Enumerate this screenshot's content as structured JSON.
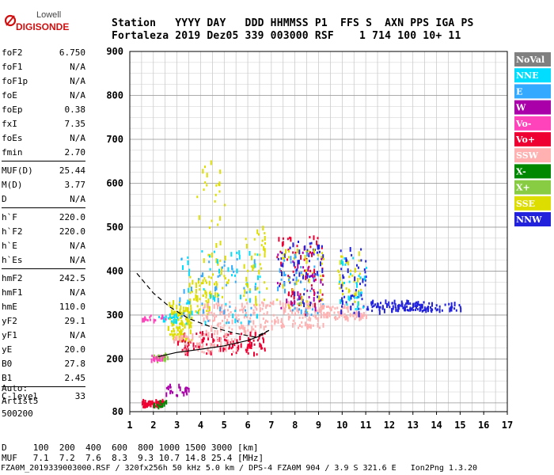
{
  "logo": {
    "line1": "Lowell",
    "line2": "DIGISONDE"
  },
  "header": {
    "line1": "Station   YYYY DAY   DDD HHMMSS P1  FFS S  AXN PPS IGA PS",
    "line2": "Fortaleza 2019 Dez05 339 003000 RSF    1 714 100 10+ 11"
  },
  "params": [
    {
      "k": "foF2",
      "v": "6.750"
    },
    {
      "k": "foF1",
      "v": "N/A"
    },
    {
      "k": "foF1p",
      "v": "N/A"
    },
    {
      "k": "foE",
      "v": "N/A"
    },
    {
      "k": "foEp",
      "v": "0.38"
    },
    {
      "k": "fxI",
      "v": "7.35"
    },
    {
      "k": "foEs",
      "v": "N/A"
    },
    {
      "k": "fmin",
      "v": "2.70"
    },
    {
      "k": "MUF(D)",
      "v": "25.44"
    },
    {
      "k": "M(D)",
      "v": "3.77"
    },
    {
      "k": "D",
      "v": "N/A"
    },
    {
      "k": "h`F",
      "v": "220.0"
    },
    {
      "k": "h`F2",
      "v": "220.0"
    },
    {
      "k": "h`E",
      "v": "N/A"
    },
    {
      "k": "h`Es",
      "v": "N/A"
    },
    {
      "k": "hmF2",
      "v": "242.5"
    },
    {
      "k": "hmF1",
      "v": "N/A"
    },
    {
      "k": "hmE",
      "v": "110.0"
    },
    {
      "k": "yF2",
      "v": "29.1"
    },
    {
      "k": "yF1",
      "v": "N/A"
    },
    {
      "k": "yE",
      "v": "20.0"
    },
    {
      "k": "B0",
      "v": "27.8"
    },
    {
      "k": "B1",
      "v": "2.45"
    },
    {
      "k": "C-level",
      "v": "33"
    }
  ],
  "auto": [
    "Auto:",
    "Artist5",
    "500200"
  ],
  "bottom": {
    "d_line": "D     100  200  400  600  800 1000 1500 3000 [km]",
    "muf_line": "MUF   7.1  7.2  7.6  8.3  9.3 10.7 14.8 25.4 [MHz]",
    "footer": "FZA0M_2019339003000.RSF / 320fx256h 50 kHz 5.0 km / DPS-4 FZA0M 904 / 3.9 S 321.6 E   Ion2Png 1.3.20"
  },
  "legend": [
    {
      "label": "NoVal",
      "color": "#808080"
    },
    {
      "label": "NNE",
      "color": "#00ddff"
    },
    {
      "label": "E",
      "color": "#33aaff"
    },
    {
      "label": "W",
      "color": "#aa00aa"
    },
    {
      "label": "Vo-",
      "color": "#ff44bb"
    },
    {
      "label": "Vo+",
      "color": "#ee0033"
    },
    {
      "label": "SSW",
      "color": "#ffb0b0"
    },
    {
      "label": "X-",
      "color": "#008800"
    },
    {
      "label": "X+",
      "color": "#88cc44"
    },
    {
      "label": "SSE",
      "color": "#dddd00"
    },
    {
      "label": "NNW",
      "color": "#2222dd"
    }
  ],
  "chart_data": {
    "type": "scatter",
    "xlabel": "",
    "ylabel": "",
    "xlim": [
      1,
      17
    ],
    "ylim": [
      80,
      900
    ],
    "xticks": [
      "1",
      "2",
      "3",
      "4",
      "5",
      "6",
      "7",
      "8",
      "9",
      "10",
      "11",
      "12",
      "13",
      "14",
      "15",
      "16",
      "17"
    ],
    "yticks": [
      "900",
      "800",
      "700",
      "600",
      "500",
      "400",
      "300",
      "200",
      "80"
    ],
    "ytick_values": [
      900,
      800,
      700,
      600,
      500,
      400,
      300,
      200,
      80
    ],
    "grid": true,
    "profile_curve": [
      [
        2.2,
        205
      ],
      [
        3,
        215
      ],
      [
        4,
        222
      ],
      [
        5,
        230
      ],
      [
        6,
        242
      ],
      [
        6.5,
        252
      ],
      [
        6.9,
        265
      ]
    ],
    "dashed_curve": [
      [
        1.3,
        395
      ],
      [
        2,
        350
      ],
      [
        2.7,
        318
      ],
      [
        3.5,
        292
      ],
      [
        4.5,
        272
      ],
      [
        5.5,
        258
      ],
      [
        6.3,
        250
      ],
      [
        6.9,
        265
      ]
    ],
    "scatter_regions": [
      {
        "x": [
          2.6,
          3.2
        ],
        "y": [
          245,
          330
        ],
        "color": "#dddd00",
        "density": 70
      },
      {
        "x": [
          3.1,
          3.6
        ],
        "y": [
          240,
          320
        ],
        "color": "#dddd00",
        "density": 60
      },
      {
        "x": [
          3.5,
          4.4
        ],
        "y": [
          300,
          390
        ],
        "color": "#dddd00",
        "density": 50
      },
      {
        "x": [
          4,
          6.5
        ],
        "y": [
          255,
          330
        ],
        "color": "#ffb0b0",
        "density": 110
      },
      {
        "x": [
          3,
          6.8
        ],
        "y": [
          210,
          260
        ],
        "color": "#ee0033",
        "density": 110
      },
      {
        "x": [
          2.8,
          5.5
        ],
        "y": [
          215,
          255
        ],
        "color": "#ffb0b0",
        "density": 60
      },
      {
        "x": [
          3.8,
          5
        ],
        "y": [
          420,
          650
        ],
        "color": "#dddd00",
        "density": 25
      },
      {
        "x": [
          4.3,
          5.2
        ],
        "y": [
          330,
          470
        ],
        "color": "#dddd00",
        "density": 30
      },
      {
        "x": [
          3,
          6.5
        ],
        "y": [
          280,
          450
        ],
        "color": "#00ddff",
        "density": 55
      },
      {
        "x": [
          3,
          6.5
        ],
        "y": [
          280,
          430
        ],
        "color": "#33aaff",
        "density": 45
      },
      {
        "x": [
          5.8,
          6.8
        ],
        "y": [
          320,
          500
        ],
        "color": "#dddd00",
        "density": 40
      },
      {
        "x": [
          6.5,
          9.2
        ],
        "y": [
          270,
          330
        ],
        "color": "#ffb0b0",
        "density": 110
      },
      {
        "x": [
          7.2,
          9.2
        ],
        "y": [
          300,
          480
        ],
        "color": "#ee0033",
        "density": 70
      },
      {
        "x": [
          7.2,
          9.2
        ],
        "y": [
          320,
          470
        ],
        "color": "#2222dd",
        "density": 60
      },
      {
        "x": [
          7.2,
          9.2
        ],
        "y": [
          300,
          450
        ],
        "color": "#dddd00",
        "density": 45
      },
      {
        "x": [
          7.2,
          9.2
        ],
        "y": [
          300,
          440
        ],
        "color": "#33aaff",
        "density": 40
      },
      {
        "x": [
          7.2,
          9.2
        ],
        "y": [
          300,
          450
        ],
        "color": "#aa00aa",
        "density": 30
      },
      {
        "x": [
          9,
          11
        ],
        "y": [
          290,
          320
        ],
        "color": "#ffb0b0",
        "density": 70
      },
      {
        "x": [
          9.8,
          10.8
        ],
        "y": [
          320,
          440
        ],
        "color": "#dddd00",
        "density": 35
      },
      {
        "x": [
          9.8,
          11
        ],
        "y": [
          300,
          450
        ],
        "color": "#2222dd",
        "density": 45
      },
      {
        "x": [
          9.8,
          11
        ],
        "y": [
          310,
          430
        ],
        "color": "#00ddff",
        "density": 30
      },
      {
        "x": [
          11,
          12
        ],
        "y": [
          305,
          330
        ],
        "color": "#2222dd",
        "density": 25
      },
      {
        "x": [
          12,
          13.7
        ],
        "y": [
          308,
          330
        ],
        "color": "#2222dd",
        "density": 70
      },
      {
        "x": [
          13.7,
          15
        ],
        "y": [
          310,
          325
        ],
        "color": "#2222dd",
        "density": 25
      },
      {
        "x": [
          2,
          2.6
        ],
        "y": [
          195,
          210
        ],
        "color": "#88cc44",
        "density": 25
      },
      {
        "x": [
          1.8,
          2.5
        ],
        "y": [
          195,
          210
        ],
        "color": "#ff44bb",
        "density": 15
      },
      {
        "x": [
          2.2,
          3
        ],
        "y": [
          285,
          300
        ],
        "color": "#00ddff",
        "density": 20
      },
      {
        "x": [
          1.5,
          2.5
        ],
        "y": [
          285,
          300
        ],
        "color": "#ff44bb",
        "density": 15
      },
      {
        "x": [
          1.5,
          2.4
        ],
        "y": [
          90,
          104
        ],
        "color": "#ee0033",
        "density": 50
      },
      {
        "x": [
          2,
          2.6
        ],
        "y": [
          90,
          104
        ],
        "color": "#008800",
        "density": 15
      },
      {
        "x": [
          2.5,
          3.5
        ],
        "y": [
          115,
          140
        ],
        "color": "#aa00aa",
        "density": 25
      }
    ]
  }
}
